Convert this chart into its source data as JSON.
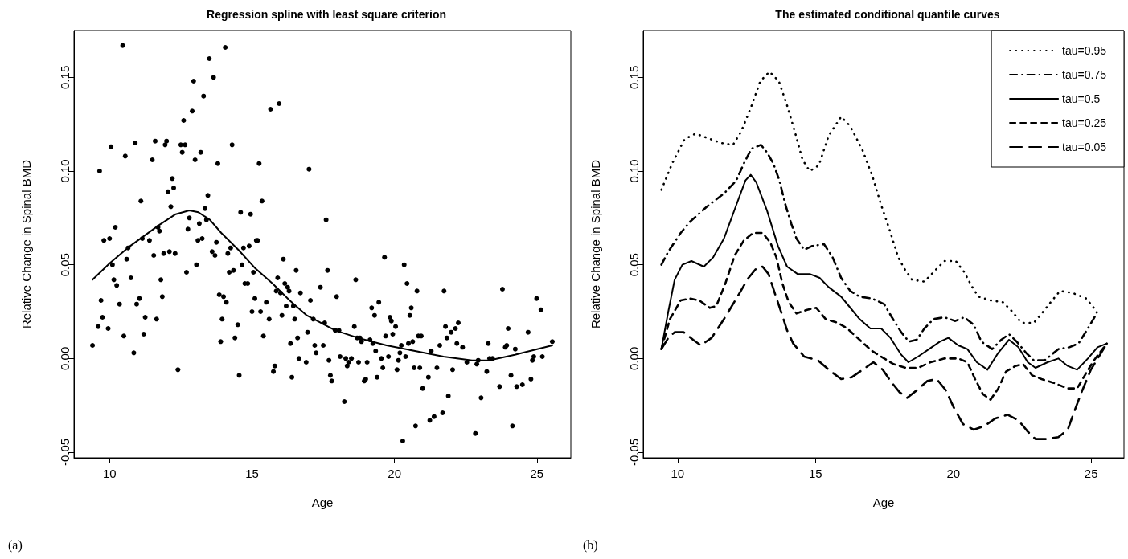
{
  "chart_data": [
    {
      "type": "scatter",
      "title": "Regression spline with least square criterion",
      "xlabel": "Age",
      "ylabel": "Relative Change in Spinal BMD",
      "annotations": [
        "(a)"
      ],
      "xlim": [
        8.75,
        26.19
      ],
      "ylim": [
        -0.053,
        0.175
      ],
      "xticks": [
        10,
        15,
        20,
        25
      ],
      "yticks": [
        {
          "value": -0.05,
          "label": "-0.05"
        },
        {
          "value": 0,
          "label": "0.00"
        },
        {
          "value": 0.05,
          "label": "0.05"
        },
        {
          "value": 0.1,
          "label": "0.10"
        },
        {
          "value": 0.15,
          "label": "0.15"
        }
      ],
      "grid": false,
      "legend": false,
      "series": [
        {
          "marker": "circle",
          "color": "#000000",
          "x": [
            10.46,
            14.06,
            13.5,
            13.65,
            12.95,
            13.3,
            12.9,
            12.6,
            10.05,
            10.55,
            10.9,
            11.6,
            11.5,
            11.95,
            12.0,
            12.5,
            12.65,
            12.55,
            13.0,
            13.2,
            13.8,
            14.3,
            9.65,
            12.2,
            12.25,
            12.05,
            11.1,
            12.15,
            13.45,
            13.35,
            12.8,
            13.4,
            13.15,
            12.75,
            10.2,
            11.7,
            11.75,
            10.0,
            9.8,
            11.15,
            11.4,
            10.65,
            13.25,
            13.1,
            13.75,
            13.6,
            13.7,
            11.9,
            12.1,
            12.3,
            11.55,
            10.6,
            10.1,
            13.05,
            12.7,
            10.75,
            10.15,
            10.25,
            11.8,
            11.85,
            9.7,
            11.05,
            10.35,
            10.95,
            9.75,
            11.25,
            11.65,
            9.6,
            9.95,
            9.4,
            10.5,
            11.2,
            10.85,
            12.4,
            13.85,
            14.0,
            14.1,
            13.95,
            13.9,
            14.2,
            14.35,
            14.15,
            14.25,
            14.6,
            14.95,
            15.25,
            15.35,
            15.15,
            15.2,
            14.9,
            14.7,
            14.65,
            15.05,
            14.75,
            14.85,
            15.1,
            15.5,
            15.0,
            15.3,
            15.6,
            14.5,
            14.4,
            15.4,
            14.55,
            15.65,
            15.95,
            17.0,
            16.1,
            16.55,
            17.6,
            17.65,
            15.9,
            15.85,
            16.0,
            16.15,
            16.25,
            16.3,
            16.7,
            17.4,
            17.05,
            16.2,
            16.45,
            16.05,
            16.5,
            17.15,
            17.55,
            16.95,
            16.6,
            16.35,
            17.2,
            17.5,
            17.25,
            16.65,
            16.9,
            17.7,
            15.8,
            15.75,
            16.4,
            17.75,
            17.8,
            17.97,
            17.92,
            19.65,
            20.34,
            18.64,
            20.44,
            20.79,
            21.74,
            23.79,
            24.99,
            25.14,
            20.59,
            20.54,
            19.2,
            19.45,
            19.3,
            19.84,
            19.89,
            20.04,
            19.94,
            19.69,
            18.59,
            18.05,
            18.69,
            18.79,
            18.84,
            19.14,
            19.24,
            20.84,
            20.94,
            20.64,
            20.49,
            20.24,
            21.79,
            21.99,
            22.14,
            22.24,
            21.84,
            22.19,
            22.39,
            21.59,
            21.29,
            23.99,
            24.69,
            23.29,
            23.94,
            23.89,
            24.24,
            25.54,
            25.19,
            24.89,
            24.84,
            23.34,
            23.44,
            22.54,
            22.89,
            22.94,
            23.24,
            22.04,
            21.49,
            20.69,
            20.89,
            20.09,
            20.14,
            20.19,
            20.39,
            19.79,
            19.59,
            19.54,
            19.34,
            19.39,
            19.04,
            18.94,
            18.99,
            18.74,
            18.29,
            18.39,
            18.34,
            18.49,
            18.09,
            18.24,
            20.99,
            21.19,
            21.89,
            21.69,
            21.39,
            21.24,
            20.74,
            20.29,
            22.84,
            23.04,
            23.69,
            24.09,
            24.29,
            24.49,
            24.79,
            24.14
          ],
          "values": [
            0.167,
            0.166,
            0.16,
            0.15,
            0.148,
            0.14,
            0.132,
            0.127,
            0.113,
            0.108,
            0.115,
            0.116,
            0.106,
            0.114,
            0.116,
            0.114,
            0.114,
            0.11,
            0.106,
            0.11,
            0.104,
            0.114,
            0.1,
            0.096,
            0.091,
            0.089,
            0.084,
            0.081,
            0.087,
            0.08,
            0.075,
            0.074,
            0.072,
            0.069,
            0.07,
            0.07,
            0.068,
            0.064,
            0.063,
            0.064,
            0.063,
            0.059,
            0.064,
            0.063,
            0.062,
            0.057,
            0.055,
            0.056,
            0.057,
            0.056,
            0.055,
            0.053,
            0.05,
            0.05,
            0.046,
            0.043,
            0.042,
            0.039,
            0.042,
            0.033,
            0.031,
            0.032,
            0.029,
            0.029,
            0.022,
            0.022,
            0.021,
            0.017,
            0.016,
            0.007,
            0.012,
            0.013,
            0.003,
            -0.006,
            0.034,
            0.033,
            0.03,
            0.021,
            0.009,
            0.046,
            0.047,
            0.056,
            0.059,
            0.078,
            0.077,
            0.104,
            0.084,
            0.063,
            0.063,
            0.06,
            0.059,
            0.05,
            0.046,
            0.04,
            0.04,
            0.032,
            0.03,
            0.025,
            0.025,
            0.021,
            0.018,
            0.011,
            0.012,
            -0.009,
            0.133,
            0.136,
            0.101,
            0.053,
            0.047,
            0.074,
            0.047,
            0.043,
            0.036,
            0.035,
            0.04,
            0.038,
            0.036,
            0.035,
            0.038,
            0.031,
            0.028,
            0.028,
            0.023,
            0.021,
            0.021,
            0.019,
            0.014,
            0.011,
            0.008,
            0.007,
            0.007,
            0.003,
            0.0,
            -0.002,
            -0.001,
            -0.004,
            -0.007,
            -0.01,
            -0.009,
            -0.012,
            0.033,
            0.015,
            0.054,
            0.05,
            0.042,
            0.04,
            0.036,
            0.036,
            0.037,
            0.032,
            0.026,
            0.027,
            0.023,
            0.027,
            0.03,
            0.023,
            0.022,
            0.02,
            0.017,
            0.013,
            0.012,
            0.017,
            0.015,
            0.011,
            0.011,
            0.009,
            0.01,
            0.008,
            0.012,
            0.012,
            0.009,
            0.008,
            0.007,
            0.017,
            0.014,
            0.016,
            0.019,
            0.011,
            0.008,
            0.006,
            0.007,
            0.004,
            0.016,
            0.014,
            0.008,
            0.007,
            0.006,
            0.005,
            0.009,
            0.001,
            0.001,
            -0.001,
            0.0,
            0.0,
            -0.002,
            -0.003,
            -0.001,
            -0.007,
            -0.006,
            -0.005,
            -0.005,
            -0.005,
            -0.006,
            -0.001,
            0.003,
            0.001,
            0.001,
            -0.005,
            0.0,
            0.004,
            -0.01,
            -0.002,
            -0.012,
            -0.011,
            -0.002,
            0.0,
            -0.002,
            -0.004,
            0.0,
            0.001,
            -0.023,
            -0.016,
            -0.01,
            -0.02,
            -0.029,
            -0.031,
            -0.033,
            -0.036,
            -0.044,
            -0.04,
            -0.021,
            -0.015,
            -0.009,
            -0.015,
            -0.014,
            -0.011,
            -0.036
          ]
        },
        {
          "type": "line",
          "marker": "none",
          "line_style": "solid",
          "color": "#000000",
          "x": [
            9.4,
            10.02,
            10.72,
            11.72,
            12.32,
            12.8,
            13.12,
            13.52,
            13.92,
            14.52,
            15.12,
            15.72,
            16.32,
            16.92,
            17.92,
            18.72,
            19.72,
            20.72,
            21.72,
            22.72,
            23.32,
            24.22,
            25.54
          ],
          "values": [
            0.042,
            0.051,
            0.06,
            0.071,
            0.077,
            0.079,
            0.078,
            0.074,
            0.067,
            0.058,
            0.048,
            0.04,
            0.031,
            0.023,
            0.015,
            0.011,
            0.007,
            0.004,
            0.001,
            -0.001,
            -0.001,
            0.002,
            0.007
          ]
        }
      ]
    },
    {
      "type": "line",
      "title": "The estimated conditional quantile curves",
      "xlabel": "Age",
      "ylabel": "Relative Change in Spinal BMD",
      "annotations": [
        "(b)"
      ],
      "xlim": [
        8.75,
        26.19
      ],
      "ylim": [
        -0.053,
        0.175
      ],
      "xticks": [
        10,
        15,
        20,
        25
      ],
      "yticks": [
        {
          "value": -0.05,
          "label": "-0.05"
        },
        {
          "value": 0,
          "label": "0.00"
        },
        {
          "value": 0.05,
          "label": "0.05"
        },
        {
          "value": 0.1,
          "label": "0.10"
        },
        {
          "value": 0.15,
          "label": "0.15"
        }
      ],
      "grid": false,
      "legend": "top right",
      "marker": "none",
      "series": [
        {
          "name": "tau=0.95",
          "line_style": "dotted",
          "color": "#000000",
          "x": [
            9.41,
            9.8,
            10.25,
            10.65,
            11.57,
            12.01,
            12.3,
            12.66,
            13.0,
            13.33,
            13.67,
            13.97,
            14.27,
            14.53,
            14.79,
            15.12,
            15.48,
            15.93,
            16.26,
            16.71,
            17.07,
            17.38,
            17.68,
            18.0,
            18.22,
            18.5,
            18.95,
            19.34,
            19.68,
            20.09,
            20.4,
            20.65,
            20.91,
            21.35,
            21.8,
            22.14,
            22.47,
            22.92,
            23.26,
            23.53,
            23.87,
            24.32,
            24.82,
            25.21
          ],
          "values": [
            0.09,
            0.104,
            0.117,
            0.12,
            0.115,
            0.114,
            0.121,
            0.134,
            0.148,
            0.153,
            0.148,
            0.135,
            0.12,
            0.106,
            0.1,
            0.103,
            0.119,
            0.129,
            0.124,
            0.111,
            0.097,
            0.082,
            0.069,
            0.054,
            0.048,
            0.042,
            0.041,
            0.047,
            0.052,
            0.052,
            0.046,
            0.039,
            0.033,
            0.031,
            0.03,
            0.025,
            0.019,
            0.019,
            0.025,
            0.03,
            0.036,
            0.035,
            0.032,
            0.025
          ]
        },
        {
          "name": "tau=0.75",
          "line_style": "dashdot",
          "color": "#000000",
          "x": [
            9.41,
            9.66,
            10.11,
            10.45,
            11.06,
            11.68,
            12.13,
            12.4,
            12.68,
            13.02,
            13.24,
            13.47,
            13.69,
            13.91,
            14.12,
            14.31,
            14.59,
            14.87,
            15.31,
            15.62,
            15.93,
            16.26,
            16.6,
            17.05,
            17.49,
            17.77,
            18.11,
            18.39,
            18.67,
            18.95,
            19.28,
            19.68,
            20.07,
            20.4,
            20.74,
            21.02,
            21.41,
            21.74,
            22.02,
            22.3,
            22.64,
            22.92,
            23.31,
            23.81,
            24.21,
            24.54,
            24.88,
            25.16,
            25.27
          ],
          "values": [
            0.05,
            0.057,
            0.067,
            0.073,
            0.081,
            0.088,
            0.095,
            0.104,
            0.112,
            0.114,
            0.11,
            0.104,
            0.095,
            0.082,
            0.072,
            0.064,
            0.058,
            0.06,
            0.061,
            0.054,
            0.043,
            0.036,
            0.033,
            0.032,
            0.029,
            0.022,
            0.014,
            0.009,
            0.01,
            0.016,
            0.021,
            0.022,
            0.02,
            0.022,
            0.018,
            0.009,
            0.005,
            0.01,
            0.013,
            0.009,
            0.003,
            -0.001,
            -0.001,
            0.005,
            0.006,
            0.008,
            0.016,
            0.023,
            0.027
          ]
        },
        {
          "name": "tau=0.5",
          "line_style": "solid",
          "color": "#000000",
          "x": [
            9.41,
            9.66,
            9.89,
            10.17,
            10.5,
            10.95,
            11.29,
            11.68,
            12.13,
            12.46,
            12.65,
            12.85,
            13.24,
            13.64,
            13.97,
            14.36,
            14.81,
            15.15,
            15.48,
            15.93,
            16.21,
            16.6,
            16.99,
            17.38,
            17.72,
            18.11,
            18.37,
            18.72,
            19.12,
            19.51,
            19.82,
            20.18,
            20.51,
            20.85,
            21.24,
            21.63,
            22.02,
            22.36,
            22.7,
            22.98,
            23.42,
            23.81,
            24.15,
            24.49,
            24.88,
            25.23,
            25.57
          ],
          "values": [
            0.005,
            0.025,
            0.042,
            0.05,
            0.052,
            0.049,
            0.054,
            0.064,
            0.082,
            0.095,
            0.098,
            0.094,
            0.079,
            0.06,
            0.049,
            0.045,
            0.045,
            0.043,
            0.038,
            0.033,
            0.028,
            0.021,
            0.016,
            0.016,
            0.011,
            0.002,
            -0.002,
            0.001,
            0.005,
            0.009,
            0.011,
            0.007,
            0.005,
            -0.002,
            -0.006,
            0.003,
            0.01,
            0.006,
            -0.002,
            -0.005,
            -0.002,
            0.0,
            -0.004,
            -0.006,
            0.0,
            0.006,
            0.008
          ]
        },
        {
          "name": "tau=0.25",
          "line_style": "dashed",
          "color": "#000000",
          "x": [
            9.41,
            9.72,
            10.11,
            10.45,
            10.78,
            11.17,
            11.4,
            11.73,
            12.07,
            12.4,
            12.74,
            13.08,
            13.36,
            13.58,
            13.8,
            14.03,
            14.31,
            14.7,
            15.03,
            15.37,
            15.82,
            16.15,
            16.6,
            17.05,
            17.38,
            17.83,
            18.28,
            18.72,
            19.17,
            19.68,
            20.18,
            20.51,
            20.79,
            21.07,
            21.35,
            21.63,
            21.91,
            22.25,
            22.53,
            22.86,
            23.2,
            23.64,
            24.15,
            24.49,
            24.77,
            25.1,
            25.57
          ],
          "values": [
            0.005,
            0.021,
            0.031,
            0.032,
            0.031,
            0.027,
            0.028,
            0.04,
            0.055,
            0.063,
            0.067,
            0.067,
            0.062,
            0.054,
            0.04,
            0.03,
            0.024,
            0.026,
            0.027,
            0.021,
            0.019,
            0.016,
            0.01,
            0.004,
            0.001,
            -0.003,
            -0.005,
            -0.005,
            -0.002,
            0.0,
            0.0,
            -0.002,
            -0.011,
            -0.019,
            -0.022,
            -0.016,
            -0.007,
            -0.004,
            -0.003,
            -0.009,
            -0.011,
            -0.013,
            -0.016,
            -0.016,
            -0.009,
            -0.001,
            0.008
          ]
        },
        {
          "name": "tau=0.05",
          "line_style": "longdash",
          "color": "#000000",
          "x": [
            9.41,
            9.66,
            9.89,
            10.22,
            10.56,
            10.84,
            11.23,
            11.68,
            12.13,
            12.57,
            12.85,
            13.08,
            13.3,
            13.52,
            13.75,
            13.97,
            14.19,
            14.59,
            15.09,
            15.48,
            15.93,
            16.32,
            16.71,
            17.1,
            17.44,
            17.72,
            18.05,
            18.33,
            18.67,
            19.06,
            19.4,
            19.73,
            20.01,
            20.35,
            20.74,
            21.13,
            21.52,
            21.97,
            22.36,
            22.7,
            22.98,
            23.37,
            23.81,
            24.15,
            24.37,
            24.65,
            24.99,
            25.57
          ],
          "values": [
            0.005,
            0.011,
            0.014,
            0.014,
            0.01,
            0.007,
            0.011,
            0.021,
            0.032,
            0.043,
            0.048,
            0.049,
            0.045,
            0.035,
            0.025,
            0.015,
            0.008,
            0.001,
            -0.001,
            -0.006,
            -0.011,
            -0.01,
            -0.006,
            -0.002,
            -0.006,
            -0.012,
            -0.018,
            -0.021,
            -0.017,
            -0.012,
            -0.011,
            -0.017,
            -0.026,
            -0.035,
            -0.038,
            -0.036,
            -0.032,
            -0.03,
            -0.033,
            -0.039,
            -0.043,
            -0.043,
            -0.042,
            -0.038,
            -0.029,
            -0.018,
            -0.006,
            0.008
          ]
        }
      ]
    }
  ]
}
